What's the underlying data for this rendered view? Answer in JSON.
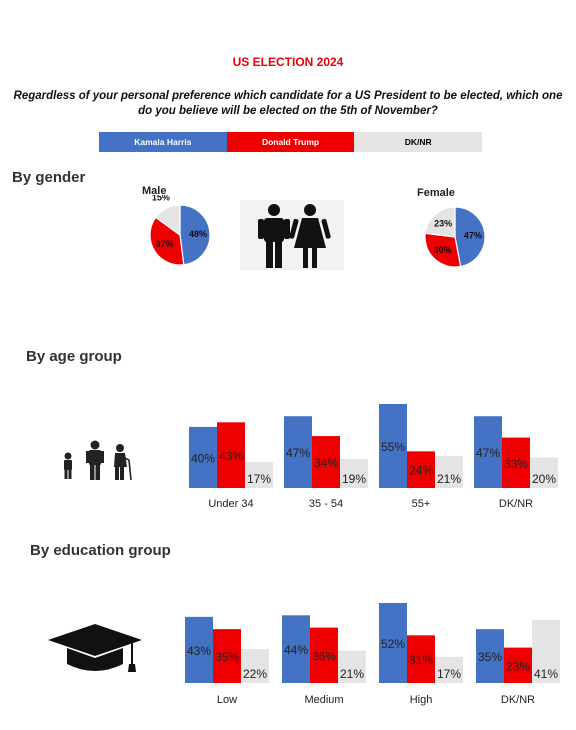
{
  "title": "US ELECTION 2024",
  "question": "Regardless of your personal preference which candidate for a US President to be elected, which one do you believe will be elected on the 5th of November?",
  "colors": {
    "harris": "#4472c4",
    "trump": "#ee0000",
    "dknr": "#e4e4e4"
  },
  "legend": [
    {
      "label": "Kamala Harris",
      "color": "#4472c4",
      "text_color": "#ffffff"
    },
    {
      "label": "Donald Trump",
      "color": "#ee0000",
      "text_color": "#ffffff"
    },
    {
      "label": "DK/NR",
      "color": "#e4e4e4",
      "text_color": "#000000"
    }
  ],
  "sections": {
    "gender": "By gender",
    "age": "By age group",
    "education": "By education group"
  },
  "icons": {
    "gender": "man-woman-icon",
    "age": "family-ages-icon",
    "education": "graduation-cap-icon"
  },
  "chart_data": [
    {
      "type": "pie",
      "title": "Male",
      "categories": [
        "Kamala Harris",
        "Donald Trump",
        "DK/NR"
      ],
      "values": [
        48,
        37,
        15
      ],
      "labels": [
        "48%",
        "37%",
        "15%"
      ]
    },
    {
      "type": "pie",
      "title": "Female",
      "categories": [
        "Kamala Harris",
        "Donald Trump",
        "DK/NR"
      ],
      "values": [
        47,
        30,
        23
      ],
      "labels": [
        "47%",
        "30%",
        "23%"
      ]
    },
    {
      "type": "bar",
      "title": "By age group",
      "categories": [
        "Under 34",
        "35 - 54",
        "55+",
        "DK/NR"
      ],
      "series": [
        {
          "name": "Kamala Harris",
          "values": [
            40,
            47,
            55,
            47
          ]
        },
        {
          "name": "Donald Trump",
          "values": [
            43,
            34,
            24,
            33
          ]
        },
        {
          "name": "DK/NR",
          "values": [
            17,
            19,
            21,
            20
          ]
        }
      ],
      "ylim": [
        0,
        55
      ]
    },
    {
      "type": "bar",
      "title": "By education group",
      "categories": [
        "Low",
        "Medium",
        "High",
        "DK/NR"
      ],
      "series": [
        {
          "name": "Kamala Harris",
          "values": [
            43,
            44,
            52,
            35
          ]
        },
        {
          "name": "Donald Trump",
          "values": [
            35,
            36,
            31,
            23
          ]
        },
        {
          "name": "DK/NR",
          "values": [
            22,
            21,
            17,
            41
          ]
        }
      ],
      "ylim": [
        0,
        52
      ]
    }
  ]
}
